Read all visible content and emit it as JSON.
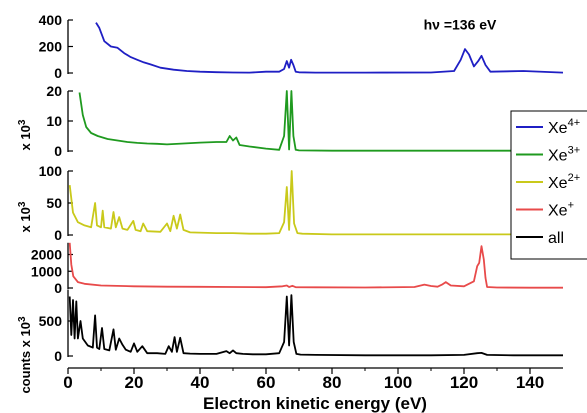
{
  "chart_data": {
    "type": "line",
    "xlabel": "Electron kinetic energy (eV)",
    "xlim": [
      0,
      150
    ],
    "x_ticks": [
      "0",
      "20",
      "40",
      "60",
      "80",
      "100",
      "120",
      "140"
    ],
    "legend": {
      "placement": "right",
      "entries": [
        {
          "base": "Xe",
          "sup": "4+",
          "color": "#1f1fc4"
        },
        {
          "base": "Xe",
          "sup": "3+",
          "color": "#1f9a1f"
        },
        {
          "base": "Xe",
          "sup": "2+",
          "color": "#c9c91a"
        },
        {
          "base": "Xe",
          "sup": "+",
          "color": "#e84a4a"
        },
        {
          "base": "all",
          "sup": "",
          "color": "#000000"
        }
      ]
    },
    "panels": [
      {
        "id": "xe4",
        "color": "#1f1fc4",
        "ylabel": "",
        "ylim": [
          0,
          400
        ],
        "y_ticks": [
          {
            "v": 0,
            "label": "0"
          },
          {
            "v": 200,
            "label": "200"
          },
          {
            "v": 400,
            "label": "400"
          }
        ],
        "annotation": {
          "text": "hν =136 eV",
          "x": 120,
          "y": 330
        },
        "x": [
          8.5,
          9.5,
          11,
          13,
          15,
          17,
          19,
          21,
          23,
          25,
          28,
          32,
          36,
          40,
          45,
          50,
          55,
          60,
          64,
          65.5,
          66.3,
          67,
          67.6,
          68.3,
          69,
          70,
          75,
          90,
          110,
          117,
          119,
          120.3,
          121.5,
          123,
          124.3,
          125.3,
          126.5,
          128,
          138,
          150
        ],
        "y": [
          380,
          340,
          240,
          200,
          190,
          150,
          120,
          100,
          80,
          65,
          40,
          25,
          15,
          10,
          6,
          4,
          3,
          10,
          10,
          30,
          90,
          40,
          100,
          60,
          10,
          5,
          3,
          3,
          4,
          15,
          100,
          180,
          140,
          50,
          90,
          130,
          60,
          10,
          15,
          3
        ]
      },
      {
        "id": "xe3",
        "color": "#1f9a1f",
        "ylabel": "x 10^3",
        "ylim": [
          0,
          20
        ],
        "y_ticks": [
          {
            "v": 0,
            "label": "0"
          },
          {
            "v": 10,
            "label": "10"
          },
          {
            "v": 20,
            "label": "20"
          }
        ],
        "x": [
          3.5,
          4.5,
          5.5,
          7,
          9,
          12,
          15,
          18,
          21,
          24,
          27,
          30,
          35,
          40,
          45,
          48,
          49,
          50,
          51,
          52,
          55,
          60,
          64,
          65.5,
          66.3,
          67,
          67.7,
          68.3,
          69,
          70,
          80,
          100,
          120,
          150
        ],
        "y": [
          19.5,
          12,
          8,
          6,
          5,
          4,
          3.5,
          3,
          2.7,
          2.5,
          2.4,
          2.2,
          2.5,
          2.8,
          3,
          3,
          5,
          3.5,
          4.5,
          2,
          1.5,
          0.8,
          0.4,
          5,
          20,
          0.5,
          20,
          5,
          0.4,
          0.2,
          0.1,
          0.1,
          0.1,
          0.1
        ]
      },
      {
        "id": "xe2",
        "color": "#c9c91a",
        "ylabel": "x 10^3",
        "ylim": [
          0,
          100
        ],
        "y_ticks": [
          {
            "v": 0,
            "label": "0"
          },
          {
            "v": 50,
            "label": "50"
          },
          {
            "v": 100,
            "label": "100"
          }
        ],
        "x": [
          0.5,
          1.5,
          3,
          5,
          7,
          8.2,
          8.8,
          10,
          10.5,
          11,
          13,
          13.8,
          14.5,
          15.5,
          16.5,
          18,
          19.8,
          20.5,
          22,
          22.8,
          24,
          28,
          30,
          31,
          32,
          33,
          34,
          35,
          37,
          45,
          50,
          55,
          60,
          64,
          65.5,
          66.3,
          67,
          67.8,
          68.5,
          69.5,
          71,
          80,
          100,
          120,
          150
        ],
        "y": [
          78,
          35,
          20,
          15,
          12,
          50,
          15,
          12,
          38,
          12,
          10,
          36,
          12,
          28,
          10,
          8,
          22,
          8,
          6,
          18,
          6,
          5,
          18,
          6,
          30,
          10,
          32,
          8,
          4,
          3,
          3,
          2,
          2,
          3,
          20,
          75,
          8,
          100,
          18,
          3,
          2,
          1,
          1,
          1,
          1
        ]
      },
      {
        "id": "xe1",
        "color": "#e84a4a",
        "ylabel": "",
        "ylim": [
          0,
          2700
        ],
        "y_ticks": [
          {
            "v": 0,
            "label": "0"
          },
          {
            "v": 1000,
            "label": "1000"
          },
          {
            "v": 2000,
            "label": "2000"
          }
        ],
        "x": [
          0.5,
          1,
          1.6,
          3,
          5,
          10,
          20,
          30,
          40,
          50,
          60,
          65,
          66.3,
          67,
          68,
          69,
          75,
          90,
          105,
          108,
          110,
          112,
          113.5,
          114.5,
          116,
          120,
          123,
          124,
          124.6,
          125.3,
          126,
          126.5,
          127,
          130,
          140,
          150
        ],
        "y": [
          2700,
          1400,
          700,
          350,
          250,
          150,
          100,
          80,
          70,
          60,
          50,
          100,
          150,
          60,
          130,
          50,
          40,
          30,
          60,
          200,
          120,
          80,
          220,
          350,
          150,
          100,
          400,
          1300,
          1500,
          2500,
          1700,
          600,
          60,
          30,
          20,
          15
        ]
      },
      {
        "id": "all",
        "color": "#000000",
        "ylabel": "counts x 10^3",
        "ylim": [
          0,
          950
        ],
        "y_ticks": [
          {
            "v": 0,
            "label": "0"
          },
          {
            "v": 500,
            "label": "500"
          }
        ],
        "x": [
          0.5,
          1,
          1.5,
          2,
          2.5,
          3,
          3.8,
          4.5,
          6,
          7.5,
          8.2,
          8.8,
          9.5,
          10.3,
          11,
          12.5,
          13.8,
          14.5,
          15.5,
          16.5,
          17.5,
          19,
          20,
          21,
          22.5,
          24,
          27,
          29.5,
          30.5,
          31.5,
          32.3,
          33,
          34,
          35,
          37,
          40,
          45,
          48,
          49,
          50,
          51,
          53,
          56,
          60,
          64,
          65.5,
          66.3,
          67,
          67.7,
          68.4,
          69.2,
          70.5,
          75,
          90,
          100,
          110,
          120,
          124,
          125.3,
          127,
          135,
          150
        ],
        "y": [
          850,
          300,
          800,
          250,
          780,
          250,
          500,
          250,
          150,
          120,
          580,
          120,
          100,
          400,
          100,
          80,
          380,
          90,
          250,
          160,
          90,
          60,
          180,
          60,
          140,
          40,
          40,
          30,
          140,
          60,
          270,
          60,
          260,
          40,
          35,
          30,
          30,
          70,
          40,
          80,
          40,
          30,
          25,
          25,
          40,
          200,
          850,
          150,
          870,
          200,
          30,
          20,
          15,
          10,
          10,
          10,
          15,
          40,
          45,
          15,
          10,
          10
        ]
      }
    ]
  }
}
